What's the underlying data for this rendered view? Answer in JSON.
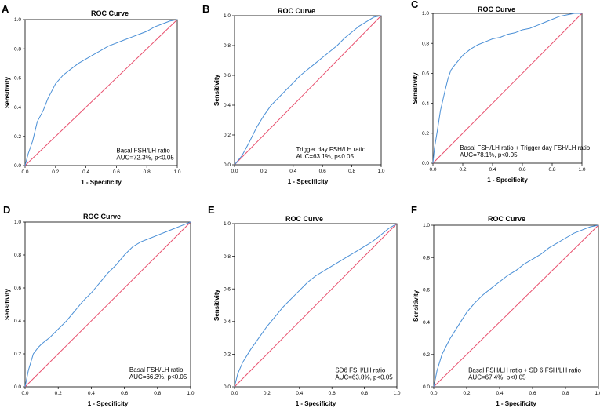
{
  "figure_colors": {
    "roc_line": "#4a8fd6",
    "reference_line": "#e8506e",
    "axes": "#000000"
  },
  "chart_data": [
    {
      "panel": "A",
      "type": "line",
      "title": "ROC Curve",
      "xlabel": "1 - Specificity",
      "ylabel": "Sensitivity",
      "xlim": [
        0,
        1
      ],
      "ylim": [
        0,
        1
      ],
      "ticks": [
        "0.0",
        "0.2",
        "0.4",
        "0.6",
        "0.8",
        "1.0"
      ],
      "annotation_lines": [
        "Basal FSH/LH ratio",
        "AUC=72.3%, p<0.05"
      ],
      "reference_line": [
        [
          0,
          0
        ],
        [
          1,
          1
        ]
      ],
      "series": [
        {
          "name": "Basal FSH/LH ratio",
          "x": [
            0,
            0.02,
            0.05,
            0.08,
            0.1,
            0.12,
            0.15,
            0.18,
            0.2,
            0.25,
            0.3,
            0.35,
            0.4,
            0.45,
            0.5,
            0.55,
            0.6,
            0.65,
            0.7,
            0.75,
            0.8,
            0.85,
            0.9,
            0.95,
            1.0
          ],
          "y": [
            0,
            0.08,
            0.17,
            0.3,
            0.34,
            0.38,
            0.46,
            0.52,
            0.56,
            0.62,
            0.66,
            0.7,
            0.73,
            0.76,
            0.79,
            0.82,
            0.84,
            0.86,
            0.88,
            0.9,
            0.92,
            0.95,
            0.97,
            0.99,
            1.0
          ]
        }
      ]
    },
    {
      "panel": "B",
      "type": "line",
      "title": "ROC Curve",
      "xlabel": "1 - Specificity",
      "ylabel": "Sensitivity",
      "xlim": [
        0,
        1
      ],
      "ylim": [
        0,
        1
      ],
      "ticks": [
        "0.0",
        "0.2",
        "0.4",
        "0.6",
        "0.8",
        "1.0"
      ],
      "annotation_lines": [
        "Trigger day FSH/LH ratio",
        "AUC=63.1%, p<0.05"
      ],
      "reference_line": [
        [
          0,
          0
        ],
        [
          1,
          1
        ]
      ],
      "series": [
        {
          "name": "Trigger day FSH/LH ratio",
          "x": [
            0,
            0.05,
            0.1,
            0.15,
            0.2,
            0.25,
            0.3,
            0.35,
            0.4,
            0.45,
            0.5,
            0.55,
            0.6,
            0.65,
            0.7,
            0.75,
            0.8,
            0.85,
            0.9,
            0.95,
            1.0
          ],
          "y": [
            0,
            0.06,
            0.15,
            0.25,
            0.33,
            0.4,
            0.45,
            0.5,
            0.55,
            0.6,
            0.64,
            0.68,
            0.72,
            0.76,
            0.8,
            0.85,
            0.89,
            0.93,
            0.96,
            0.99,
            1.0
          ]
        }
      ]
    },
    {
      "panel": "C",
      "type": "line",
      "title": "ROC Curve",
      "xlabel": "1 - Specificity",
      "ylabel": "Sensitivity",
      "xlim": [
        0,
        1
      ],
      "ylim": [
        0,
        1
      ],
      "ticks": [
        "0.0",
        "0.2",
        "0.4",
        "0.6",
        "0.8",
        "1.0"
      ],
      "annotation_lines": [
        "Basal FSH/LH ratio + Trigger day FSH/LH ratio",
        "AUC=78.1%, p<0.05"
      ],
      "reference_line": [
        [
          0,
          0
        ],
        [
          1,
          1
        ]
      ],
      "series": [
        {
          "name": "Basal FSH/LH ratio + Trigger day FSH/LH ratio",
          "x": [
            0,
            0.01,
            0.03,
            0.05,
            0.08,
            0.1,
            0.12,
            0.15,
            0.2,
            0.25,
            0.3,
            0.35,
            0.4,
            0.45,
            0.5,
            0.55,
            0.6,
            0.65,
            0.7,
            0.75,
            0.8,
            0.85,
            0.9,
            0.95,
            1.0
          ],
          "y": [
            0,
            0.1,
            0.22,
            0.35,
            0.48,
            0.56,
            0.62,
            0.66,
            0.72,
            0.76,
            0.79,
            0.81,
            0.83,
            0.84,
            0.86,
            0.87,
            0.89,
            0.9,
            0.92,
            0.94,
            0.96,
            0.98,
            0.99,
            1.0,
            1.0
          ]
        }
      ]
    },
    {
      "panel": "D",
      "type": "line",
      "title": "ROC Curve",
      "xlabel": "1 - Specificity",
      "ylabel": "Sensitivity",
      "xlim": [
        0,
        1
      ],
      "ylim": [
        0,
        1
      ],
      "ticks": [
        "0.0",
        "0.2",
        "0.4",
        "0.6",
        "0.8",
        "1.0"
      ],
      "annotation_lines": [
        "Basal FSH/LH ratio",
        "AUC=66.3%, p<0.05"
      ],
      "reference_line": [
        [
          0,
          0
        ],
        [
          1,
          1
        ]
      ],
      "series": [
        {
          "name": "Basal FSH/LH ratio",
          "x": [
            0,
            0.02,
            0.05,
            0.08,
            0.1,
            0.15,
            0.2,
            0.25,
            0.3,
            0.35,
            0.4,
            0.45,
            0.5,
            0.55,
            0.6,
            0.65,
            0.7,
            0.75,
            0.8,
            0.85,
            0.9,
            0.95,
            1.0
          ],
          "y": [
            0,
            0.1,
            0.2,
            0.24,
            0.26,
            0.3,
            0.35,
            0.4,
            0.46,
            0.52,
            0.57,
            0.63,
            0.69,
            0.74,
            0.8,
            0.85,
            0.88,
            0.9,
            0.92,
            0.94,
            0.96,
            0.98,
            1.0
          ]
        }
      ]
    },
    {
      "panel": "E",
      "type": "line",
      "title": "ROC Curve",
      "xlabel": "1 - Specificity",
      "ylabel": "Sensitivity",
      "xlim": [
        0,
        1
      ],
      "ylim": [
        0,
        1
      ],
      "ticks": [
        "0.0",
        "0.2",
        "0.4",
        "0.6",
        "0.8",
        "1.0"
      ],
      "annotation_lines": [
        "SD6 FSH/LH ratio",
        "AUC=63.8%, p<0.05"
      ],
      "reference_line": [
        [
          0,
          0
        ],
        [
          1,
          1
        ]
      ],
      "series": [
        {
          "name": "SD6 FSH/LH ratio",
          "x": [
            0,
            0.02,
            0.05,
            0.1,
            0.15,
            0.2,
            0.25,
            0.3,
            0.35,
            0.4,
            0.45,
            0.5,
            0.55,
            0.6,
            0.65,
            0.7,
            0.75,
            0.8,
            0.85,
            0.9,
            0.95,
            1.0
          ],
          "y": [
            0,
            0.08,
            0.15,
            0.23,
            0.3,
            0.37,
            0.43,
            0.49,
            0.54,
            0.59,
            0.64,
            0.68,
            0.71,
            0.74,
            0.77,
            0.8,
            0.83,
            0.86,
            0.89,
            0.93,
            0.97,
            1.0
          ]
        }
      ]
    },
    {
      "panel": "F",
      "type": "line",
      "title": "ROC Curve",
      "xlabel": "1 - Specificity",
      "ylabel": "Sensitivity",
      "xlim": [
        0,
        1
      ],
      "ylim": [
        0,
        1
      ],
      "ticks": [
        "0.0",
        "0.2",
        "0.4",
        "0.6",
        "0.8",
        "1.0"
      ],
      "annotation_lines": [
        "Basal FSH/LH ratio + SD 6 FSH/LH ratio",
        "AUC=67.4%, p<0.05"
      ],
      "reference_line": [
        [
          0,
          0
        ],
        [
          1,
          1
        ]
      ],
      "series": [
        {
          "name": "Basal FSH/LH ratio + SD 6 FSH/LH ratio",
          "x": [
            0,
            0.02,
            0.05,
            0.08,
            0.1,
            0.15,
            0.2,
            0.25,
            0.3,
            0.35,
            0.4,
            0.45,
            0.5,
            0.55,
            0.6,
            0.65,
            0.7,
            0.75,
            0.8,
            0.85,
            0.9,
            0.95,
            1.0
          ],
          "y": [
            0,
            0.1,
            0.2,
            0.26,
            0.3,
            0.38,
            0.46,
            0.52,
            0.57,
            0.61,
            0.65,
            0.69,
            0.72,
            0.76,
            0.79,
            0.82,
            0.86,
            0.89,
            0.92,
            0.95,
            0.97,
            0.99,
            1.0
          ]
        }
      ]
    }
  ]
}
